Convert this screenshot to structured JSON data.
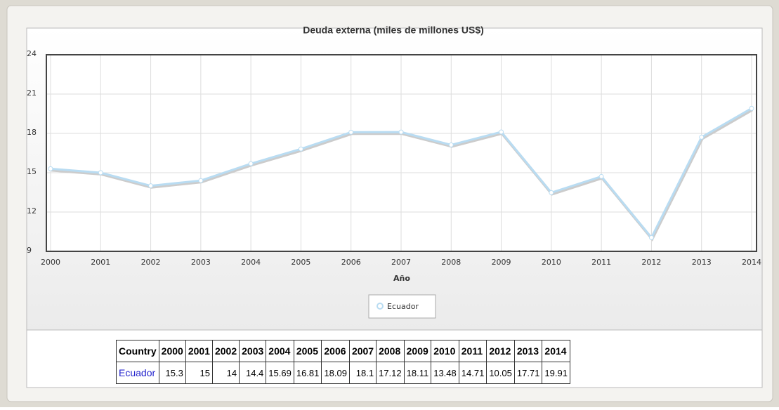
{
  "chart_data": {
    "type": "line",
    "title": "Deuda externa (miles de millones US$)",
    "xlabel": "Año",
    "x": [
      2000,
      2001,
      2002,
      2003,
      2004,
      2005,
      2006,
      2007,
      2008,
      2009,
      2010,
      2011,
      2012,
      2013,
      2014
    ],
    "xlim": [
      2000,
      2014
    ],
    "xticks": [
      2000,
      2001,
      2002,
      2003,
      2004,
      2005,
      2006,
      2007,
      2008,
      2009,
      2010,
      2011,
      2012,
      2013,
      2014
    ],
    "ylim": [
      9,
      24
    ],
    "yticks": [
      9,
      12,
      15,
      18,
      21,
      24
    ],
    "grid": true,
    "legend": "bottom",
    "series": [
      {
        "name": "Ecuador",
        "color": "#b9dcf2",
        "values": [
          15.3,
          15,
          14,
          14.4,
          15.69,
          16.81,
          18.09,
          18.1,
          17.12,
          18.11,
          13.48,
          14.71,
          10.05,
          17.71,
          19.91
        ]
      }
    ],
    "table_header": "Country"
  }
}
